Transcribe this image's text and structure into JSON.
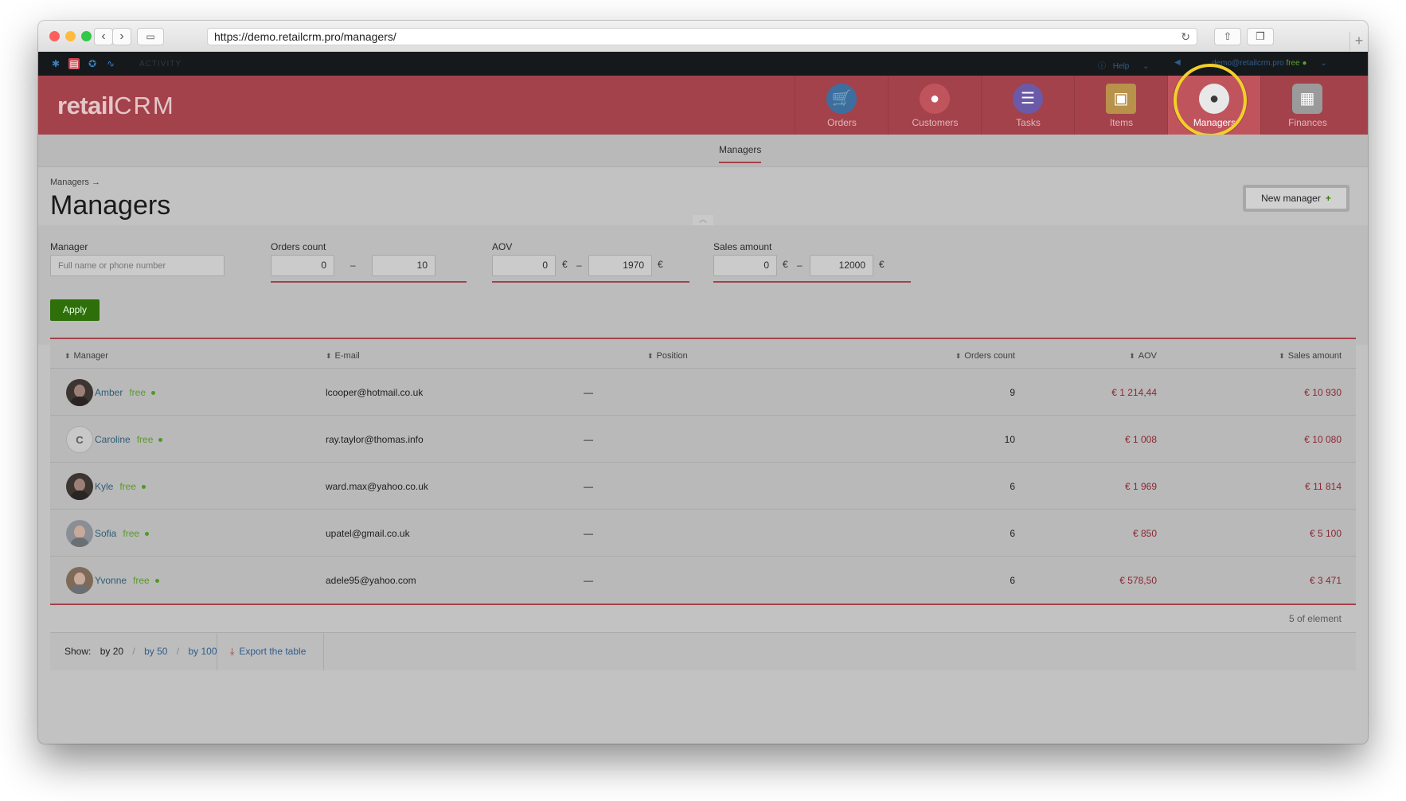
{
  "browser": {
    "url": "https://demo.retailcrm.pro/managers/"
  },
  "topbar": {
    "activity": "ACTIVITY",
    "help": "Help",
    "user_email": "demo@retailcrm.pro",
    "user_plan": "free"
  },
  "header": {
    "logo_main": "retail",
    "logo_crm": "CRM",
    "modules": [
      {
        "label": "Orders",
        "icon": "cart-icon",
        "color": "#3d6ea0"
      },
      {
        "label": "Customers",
        "icon": "customer-icon",
        "color": "#c0545d"
      },
      {
        "label": "Tasks",
        "icon": "tasks-icon",
        "color": "#6a5aa8"
      },
      {
        "label": "Items",
        "icon": "box-icon",
        "color": "#c9a15a"
      },
      {
        "label": "Managers",
        "icon": "manager-icon",
        "color": "#ffffff"
      },
      {
        "label": "Finances",
        "icon": "finances-icon",
        "color": "#9a9a9a"
      }
    ]
  },
  "subnav": {
    "tab": "Managers"
  },
  "page": {
    "breadcrumb": "Managers →",
    "title": "Managers",
    "new_button": "New manager"
  },
  "filters": {
    "manager_label": "Manager",
    "manager_placeholder": "Full name or phone number",
    "orders_label": "Orders count",
    "orders_from": "0",
    "orders_to": "10",
    "aov_label": "AOV",
    "aov_from": "0",
    "aov_to": "1970",
    "sales_label": "Sales amount",
    "sales_from": "0",
    "sales_to": "12000",
    "currency": "€",
    "dash": "–",
    "apply": "Apply"
  },
  "table": {
    "columns": [
      "Manager",
      "E-mail",
      "Position",
      "Orders count",
      "AOV",
      "Sales amount"
    ],
    "rows": [
      {
        "name": "Amber",
        "status": "free",
        "email": "lcooper@hotmail.co.uk",
        "position": "—",
        "orders": "9",
        "aov": "€ 1 214,44",
        "sales": "€ 10 930"
      },
      {
        "name": "Caroline",
        "status": "free",
        "initial": "C",
        "email": "ray.taylor@thomas.info",
        "position": "—",
        "orders": "10",
        "aov": "€ 1 008",
        "sales": "€ 10 080"
      },
      {
        "name": "Kyle",
        "status": "free",
        "email": "ward.max@yahoo.co.uk",
        "position": "—",
        "orders": "6",
        "aov": "€ 1 969",
        "sales": "€ 11 814"
      },
      {
        "name": "Sofia",
        "status": "free",
        "email": "upatel@gmail.co.uk",
        "position": "—",
        "orders": "6",
        "aov": "€ 850",
        "sales": "€ 5 100"
      },
      {
        "name": "Yvonne",
        "status": "free",
        "email": "adele95@yahoo.com",
        "position": "—",
        "orders": "6",
        "aov": "€ 578,50",
        "sales": "€ 3 471"
      }
    ],
    "count_text": "5 of element"
  },
  "footer": {
    "show_label": "Show:",
    "by20": "by 20",
    "by50": "by 50",
    "by100": "by 100",
    "export": "Export the table"
  }
}
